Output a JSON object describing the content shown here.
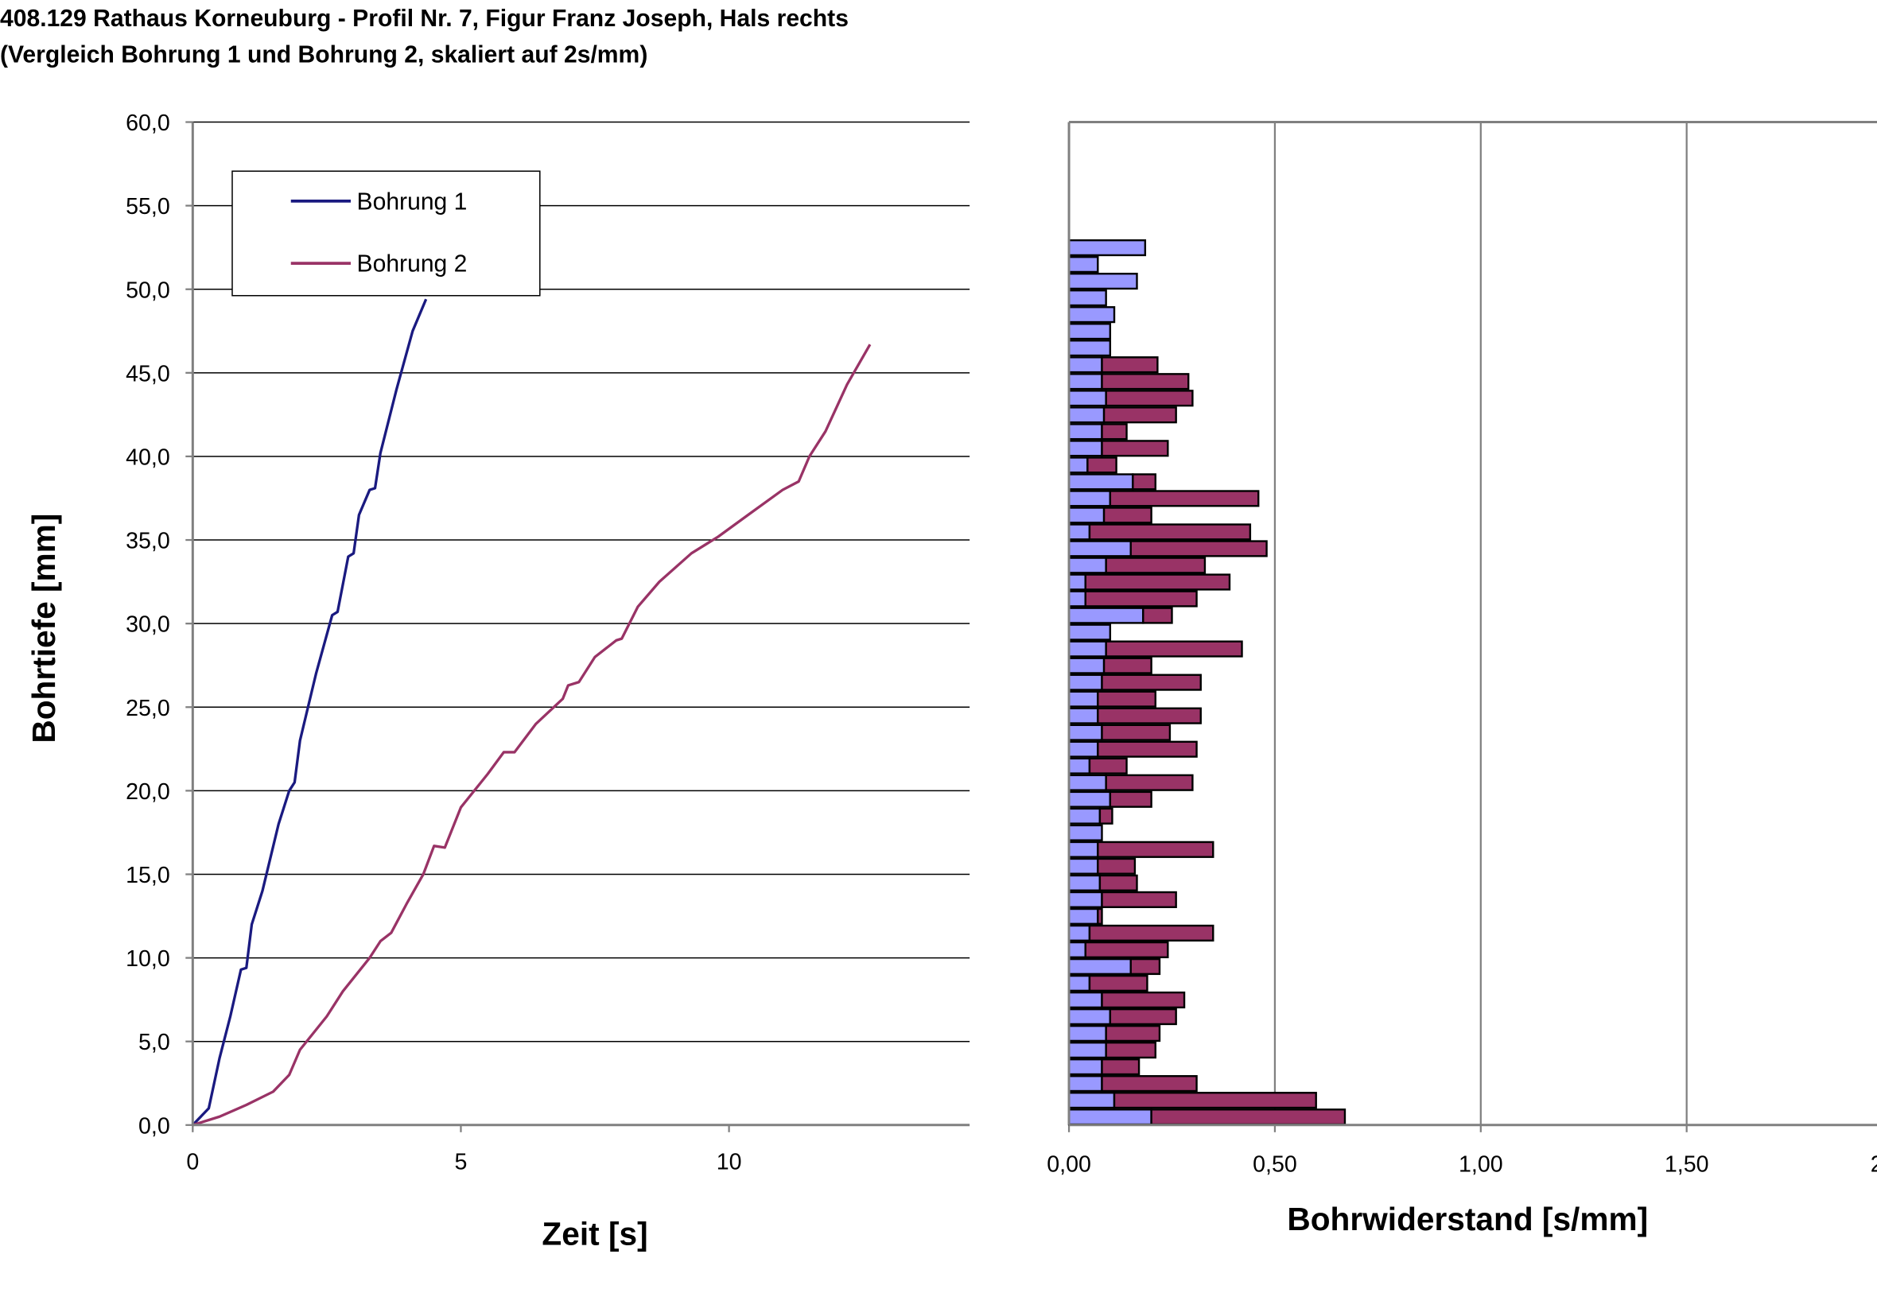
{
  "title_line1": "408.129 Rathaus Korneuburg - Profil Nr. 7, Figur Franz Joseph, Hals rechts",
  "title_line2": "(Vergleich Bohrung 1 und Bohrung 2, skaliert auf 2s/mm)",
  "colors": {
    "bohrung1_line": "#1a1a80",
    "bohrung2_line": "#993366",
    "bohrung1_bar": "#9999ff",
    "bohrung2_bar": "#993366"
  },
  "chart_data": [
    {
      "type": "line",
      "title": "",
      "xlabel": "Zeit [s]",
      "ylabel": "Bohrtiefe [mm]",
      "xlim": [
        0,
        14.5
      ],
      "ylim": [
        0,
        60
      ],
      "xticks": [
        "0",
        "5",
        "10"
      ],
      "xtick_values": [
        0,
        5,
        10
      ],
      "yticks": [
        "0,0",
        "5,0",
        "10,0",
        "15,0",
        "20,0",
        "25,0",
        "30,0",
        "35,0",
        "40,0",
        "45,0",
        "50,0",
        "55,0",
        "60,0"
      ],
      "legend_position": "top-left",
      "grid": "horizontal",
      "series": [
        {
          "name": "Bohrung 1",
          "points": [
            [
              0,
              0
            ],
            [
              0.3,
              1
            ],
            [
              0.5,
              4
            ],
            [
              0.7,
              6.5
            ],
            [
              0.9,
              9.3
            ],
            [
              1.0,
              9.4
            ],
            [
              1.1,
              12
            ],
            [
              1.3,
              14
            ],
            [
              1.6,
              18
            ],
            [
              1.8,
              20
            ],
            [
              1.9,
              20.5
            ],
            [
              2.0,
              23
            ],
            [
              2.3,
              27
            ],
            [
              2.6,
              30.5
            ],
            [
              2.7,
              30.7
            ],
            [
              2.9,
              34
            ],
            [
              3.0,
              34.2
            ],
            [
              3.1,
              36.5
            ],
            [
              3.3,
              38
            ],
            [
              3.4,
              38.1
            ],
            [
              3.5,
              40.2
            ],
            [
              3.8,
              44
            ],
            [
              4.1,
              47.5
            ],
            [
              4.35,
              49.4
            ]
          ]
        },
        {
          "name": "Bohrung 2",
          "points": [
            [
              0,
              0
            ],
            [
              0.5,
              0.5
            ],
            [
              1.0,
              1.2
            ],
            [
              1.5,
              2
            ],
            [
              1.8,
              3
            ],
            [
              2.0,
              4.5
            ],
            [
              2.5,
              6.5
            ],
            [
              2.8,
              8
            ],
            [
              3.3,
              10
            ],
            [
              3.5,
              11
            ],
            [
              3.7,
              11.5
            ],
            [
              4.0,
              13.3
            ],
            [
              4.3,
              15
            ],
            [
              4.5,
              16.7
            ],
            [
              4.7,
              16.6
            ],
            [
              5.0,
              19
            ],
            [
              5.5,
              21
            ],
            [
              5.8,
              22.3
            ],
            [
              6.0,
              22.3
            ],
            [
              6.4,
              24
            ],
            [
              6.9,
              25.5
            ],
            [
              7.0,
              26.3
            ],
            [
              7.2,
              26.5
            ],
            [
              7.5,
              28
            ],
            [
              7.9,
              29
            ],
            [
              8.0,
              29.1
            ],
            [
              8.3,
              31
            ],
            [
              8.7,
              32.5
            ],
            [
              9.3,
              34.2
            ],
            [
              9.8,
              35.2
            ],
            [
              10.4,
              36.6
            ],
            [
              11.0,
              38
            ],
            [
              11.3,
              38.5
            ],
            [
              11.5,
              40
            ],
            [
              11.8,
              41.5
            ],
            [
              12.2,
              44.3
            ],
            [
              12.63,
              46.7
            ]
          ]
        }
      ]
    },
    {
      "type": "bar",
      "orientation": "horizontal-stacked",
      "xlabel": "Bohrwiderstand [s/mm]",
      "xlim": [
        0,
        2.0
      ],
      "ylim": [
        0,
        60
      ],
      "xticks": [
        "0,00",
        "0,50",
        "1,00",
        "1,50",
        "2,00"
      ],
      "xtick_values": [
        0,
        0.5,
        1.0,
        1.5,
        2.0
      ],
      "grid": "vertical",
      "depths": [
        0,
        1,
        2,
        3,
        4,
        5,
        6,
        7,
        8,
        9,
        10,
        11,
        12,
        13,
        14,
        15,
        16,
        17,
        18,
        19,
        20,
        21,
        22,
        23,
        24,
        25,
        26,
        27,
        28,
        29,
        30,
        31,
        32,
        33,
        34,
        35,
        36,
        37,
        38,
        39,
        40,
        41,
        42,
        43,
        44,
        45,
        46,
        47,
        48,
        49,
        50,
        51,
        52
      ],
      "series": [
        {
          "name": "Bohrung 1",
          "values": [
            0.2,
            0.11,
            0.08,
            0.08,
            0.09,
            0.09,
            0.1,
            0.08,
            0.05,
            0.15,
            0.04,
            0.05,
            0.07,
            0.08,
            0.075,
            0.07,
            0.07,
            0.08,
            0.075,
            0.1,
            0.09,
            0.05,
            0.07,
            0.08,
            0.07,
            0.07,
            0.08,
            0.085,
            0.09,
            0.1,
            0.18,
            0.04,
            0.04,
            0.09,
            0.15,
            0.05,
            0.085,
            0.1,
            0.155,
            0.045,
            0.08,
            0.08,
            0.085,
            0.09,
            0.08,
            0.08,
            0.1,
            0.1,
            0.11,
            0.09,
            0.165,
            0.07,
            0.185
          ]
        },
        {
          "name": "Bohrung 2",
          "values": [
            0.47,
            0.49,
            0.23,
            0.09,
            0.12,
            0.13,
            0.16,
            0.2,
            0.14,
            0.07,
            0.2,
            0.3,
            0.01,
            0.18,
            0.09,
            0.09,
            0.28,
            0,
            0.03,
            0.1,
            0.21,
            0.09,
            0.24,
            0.165,
            0.25,
            0.14,
            0.24,
            0.115,
            0.33,
            0,
            0.07,
            0.27,
            0.35,
            0.24,
            0.33,
            0.39,
            0.115,
            0.36,
            0.055,
            0.07,
            0.16,
            0.06,
            0.175,
            0.21,
            0.21,
            0.135,
            0,
            0,
            0,
            0,
            0,
            0,
            0
          ]
        }
      ]
    }
  ]
}
